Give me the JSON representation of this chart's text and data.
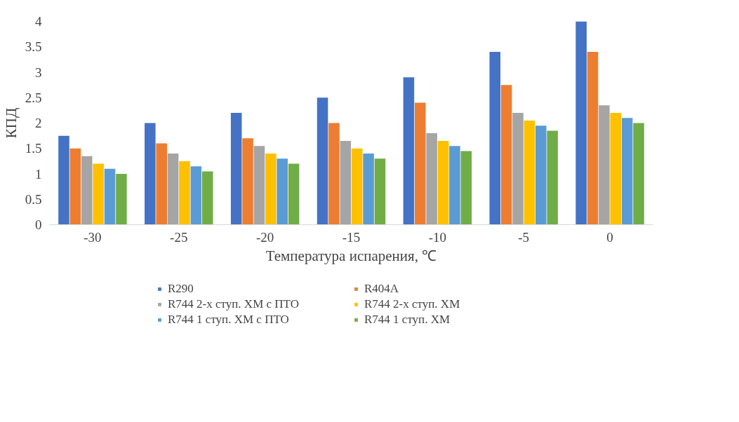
{
  "chart_data": {
    "type": "bar",
    "xlabel": "Температура испарения, ℃",
    "ylabel": "КПД",
    "categories": [
      "-30",
      "-25",
      "-20",
      "-15",
      "-10",
      "-5",
      "0"
    ],
    "series": [
      {
        "name": "R290",
        "color": "#4472c4",
        "values": [
          1.75,
          2.0,
          2.2,
          2.5,
          2.9,
          3.4,
          4.0
        ]
      },
      {
        "name": "R404A",
        "color": "#ed7d31",
        "values": [
          1.5,
          1.6,
          1.7,
          2.0,
          2.4,
          2.75,
          3.4
        ]
      },
      {
        "name": "R744 2-х ступ. ХМ с ПТО",
        "color": "#a5a5a5",
        "values": [
          1.35,
          1.4,
          1.55,
          1.65,
          1.8,
          2.2,
          2.35
        ]
      },
      {
        "name": "R744 2-х ступ. ХМ",
        "color": "#ffc000",
        "values": [
          1.2,
          1.25,
          1.4,
          1.5,
          1.65,
          2.05,
          2.2
        ]
      },
      {
        "name": "R744 1 ступ. ХМ с ПТО",
        "color": "#5b9bd5",
        "values": [
          1.1,
          1.15,
          1.3,
          1.4,
          1.55,
          1.95,
          2.1
        ]
      },
      {
        "name": "R744 1 ступ. ХМ",
        "color": "#70ad47",
        "values": [
          1.0,
          1.05,
          1.2,
          1.3,
          1.45,
          1.85,
          2.0
        ]
      }
    ],
    "ylim": [
      0,
      4
    ],
    "yticks": [
      0,
      0.5,
      1,
      1.5,
      2,
      2.5,
      3,
      3.5,
      4
    ],
    "grid": false,
    "legend": "bottom"
  }
}
